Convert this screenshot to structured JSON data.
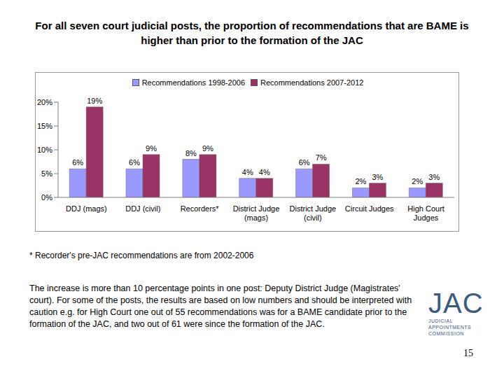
{
  "chart_data": {
    "type": "bar",
    "title": "For all seven court judicial posts, the proportion of recommendations that are BAME is higher than prior to the formation of the JAC",
    "categories": [
      "DDJ (mags)",
      "DDJ (civil)",
      "Recorders*",
      "District Judge (mags)",
      "District Judge (civil)",
      "Circuit Judges",
      "High Court Judges"
    ],
    "series": [
      {
        "name": "Recommendations 1998-2006",
        "color": "#9999ff",
        "values": [
          6,
          6,
          8,
          4,
          6,
          2,
          2
        ],
        "value_labels": [
          "6%",
          "6%",
          "8%",
          "4%",
          "6%",
          "2%",
          "2%"
        ]
      },
      {
        "name": "Recommendations 2007-2012",
        "color": "#993366",
        "values": [
          19,
          9,
          9,
          4,
          7,
          3,
          3
        ],
        "value_labels": [
          "19%",
          "9%",
          "9%",
          "4%",
          "7%",
          "3%",
          "3%"
        ]
      }
    ],
    "ylim": [
      0,
      20
    ],
    "yticks": [
      {
        "value": 0,
        "label": "0%"
      },
      {
        "value": 5,
        "label": "5%"
      },
      {
        "value": 10,
        "label": "10%"
      },
      {
        "value": 15,
        "label": "15%"
      },
      {
        "value": 20,
        "label": "20%"
      }
    ],
    "grid": false,
    "legend": "top",
    "data_labels": true,
    "annotations": [
      "* Recorder's pre-JAC recommendations are from 2002-2006",
      "The increase is more than 10 percentage points in one post: Deputy District Judge (Magistrates' court). For some of the posts, the results are based on low numbers and should be interpreted with caution e.g. for High Court one out of 55 recommendations was for a BAME candidate prior to the formation of the JAC, and two out of 61 were since the formation of the JAC."
    ]
  },
  "logo": {
    "text": "JAC",
    "subtitle": [
      "JUDICIAL",
      "APPOINTMENTS",
      "COMMISSION"
    ]
  },
  "page_number": "15"
}
